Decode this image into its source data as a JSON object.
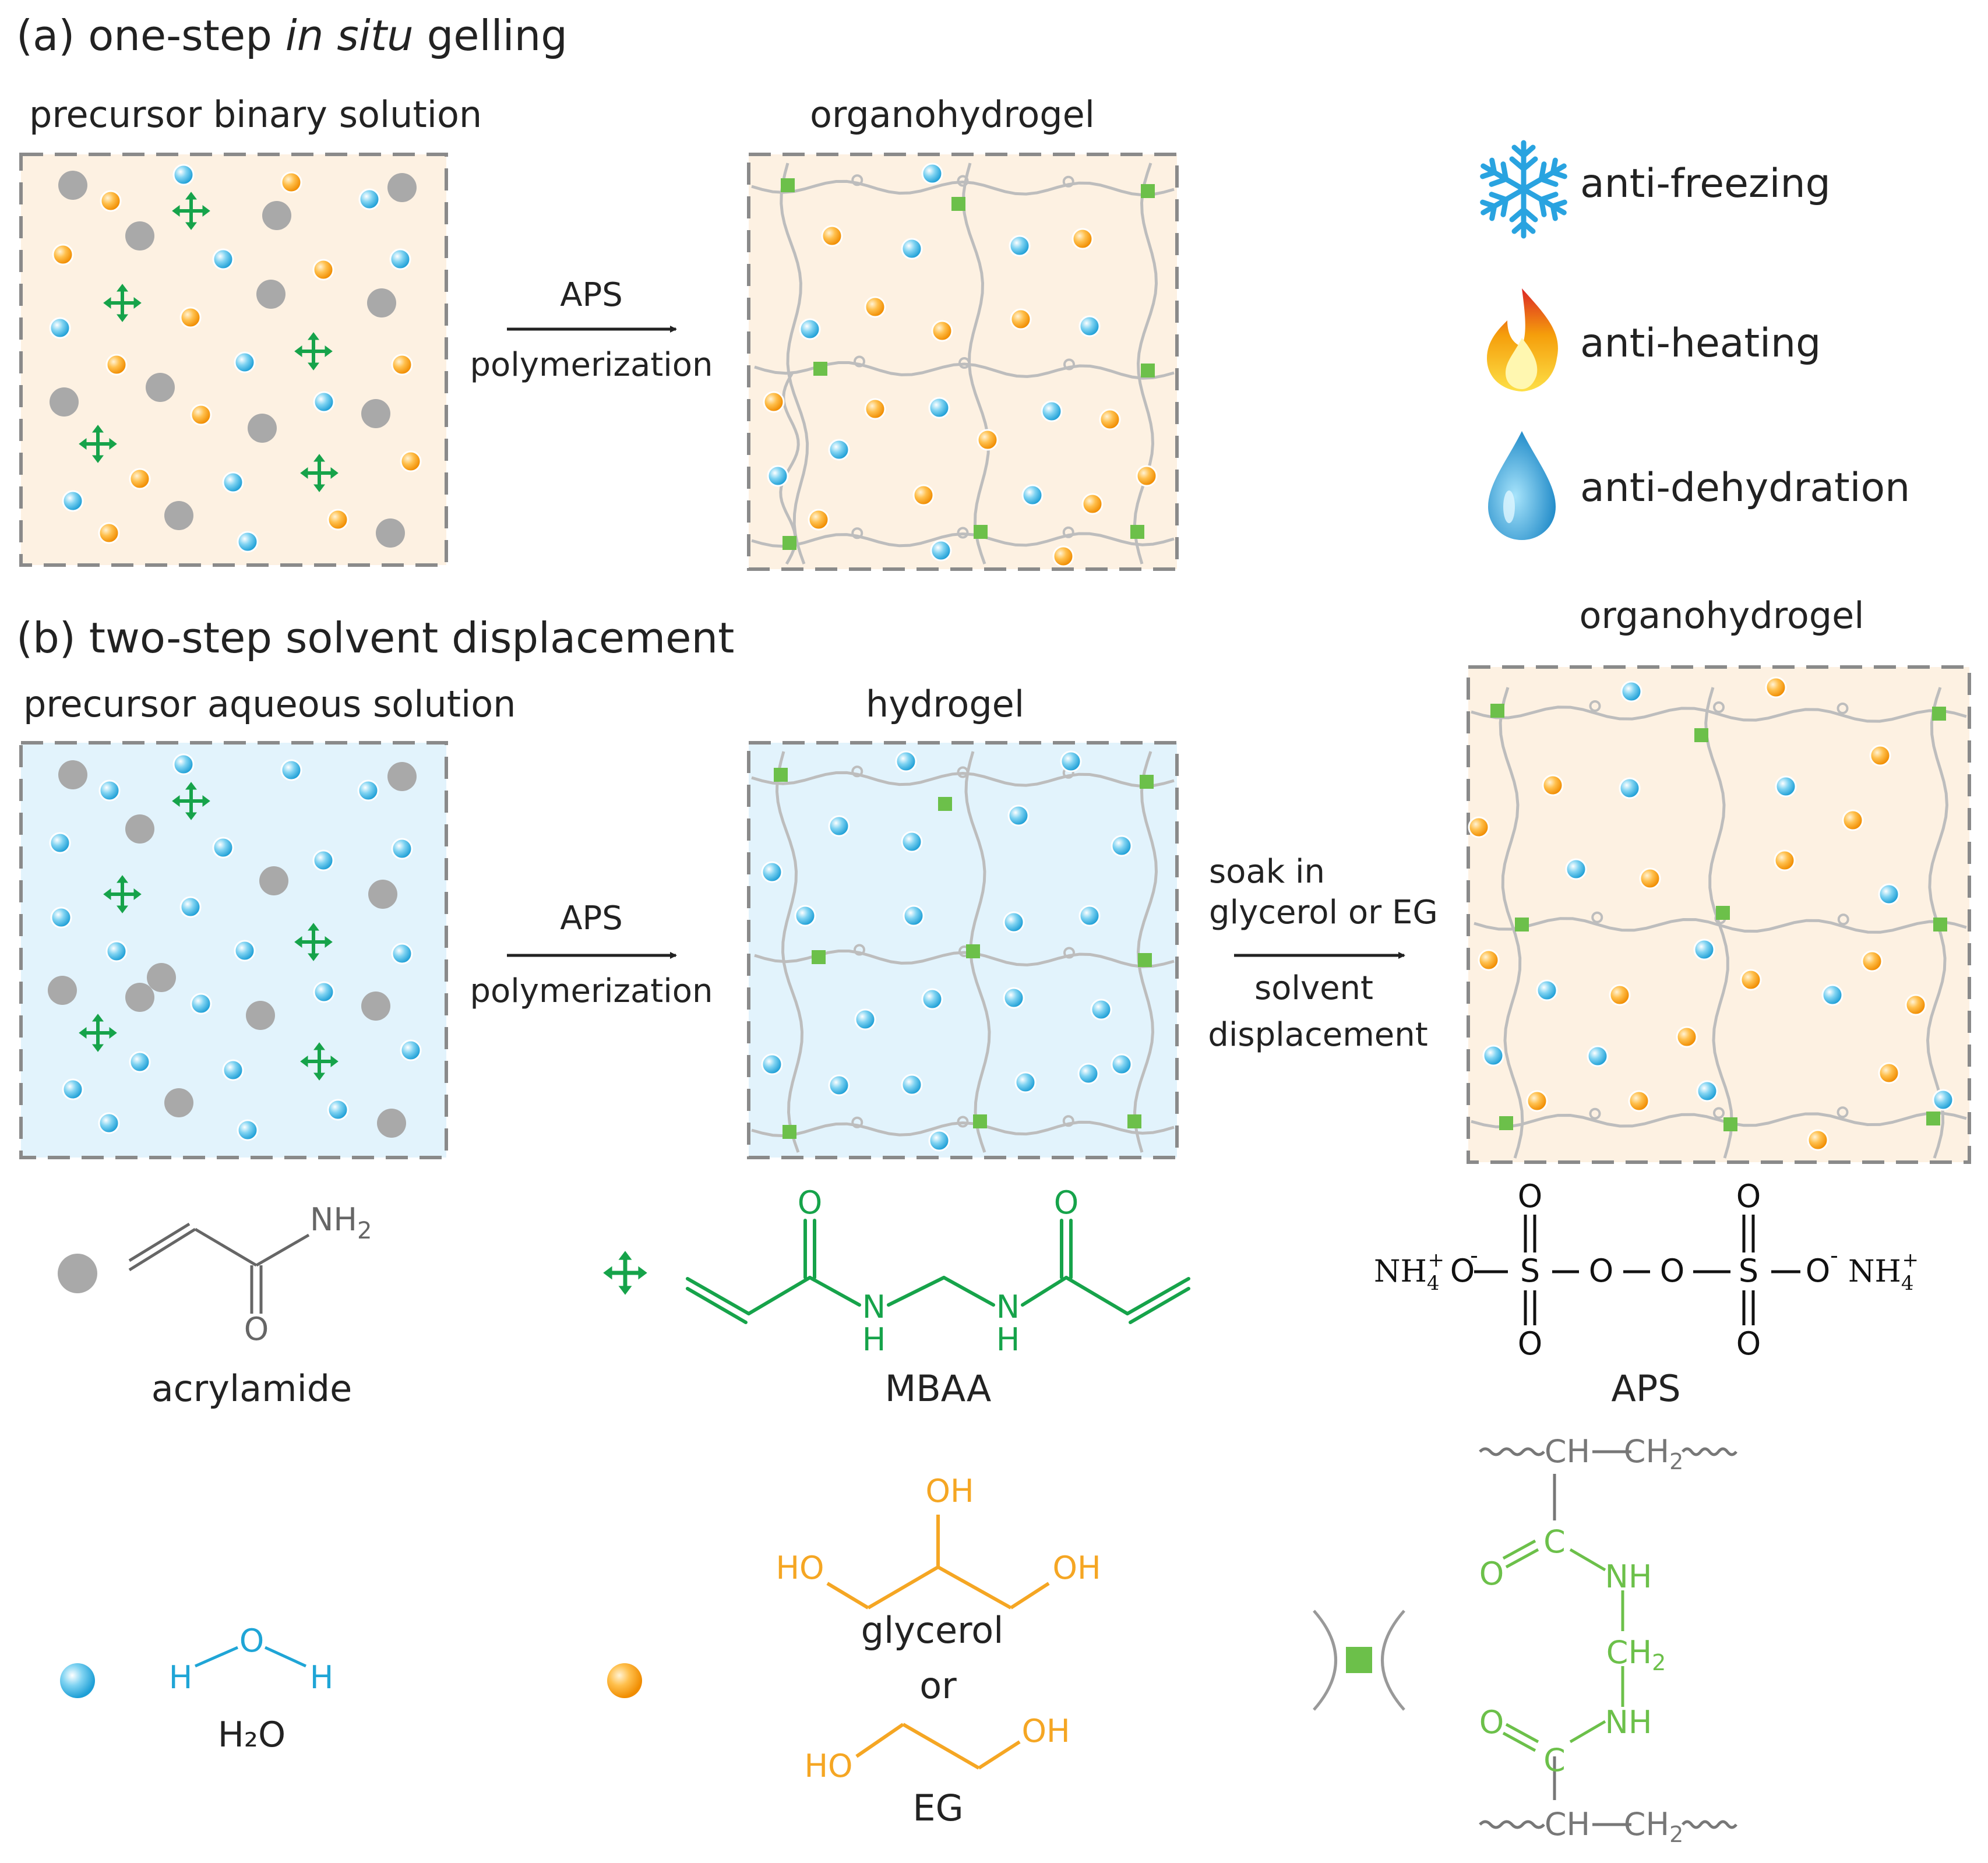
{
  "panel_a": {
    "label_prefix": "(a) one-step ",
    "label_italic": "in situ",
    "label_suffix": " gelling",
    "left_title": "precursor binary solution",
    "right_title": "organohydrogel",
    "arrow_top": "APS",
    "arrow_bottom": "polymerization"
  },
  "properties": {
    "freezing": "anti-freezing",
    "heating": "anti-heating",
    "dehydration": "anti-dehydration"
  },
  "panel_b": {
    "label": "(b) two-step solvent displacement",
    "left_title": "precursor aqueous solution",
    "middle_title": "hydrogel",
    "right_title": "organohydrogel",
    "arrow1_top": "APS",
    "arrow1_bottom": "polymerization",
    "arrow2_top1": "soak in",
    "arrow2_top2": "glycerol or EG",
    "arrow2_bottom1": "solvent",
    "arrow2_bottom2": "displacement"
  },
  "legend": {
    "acrylamide_name": "acrylamide",
    "acrylamide_nh2": "NH",
    "acrylamide_nh2_sub": "2",
    "acrylamide_o": "O",
    "mbaa_name": "MBAA",
    "mbaa_o": "O",
    "mbaa_n": "N",
    "mbaa_h": "H",
    "aps_name": "APS",
    "aps_o": "O",
    "aps_s": "S",
    "aps_nh4": "NH",
    "aps_sub4": "4",
    "aps_plus": "+",
    "aps_minus": "-",
    "water_h": "H",
    "water_o": "O",
    "water_name": "H₂O",
    "glycerol_oh": "OH",
    "glycerol_ho": "HO",
    "glycerol_name": "glycerol",
    "or": "or",
    "eg_oh": "OH",
    "eg_ho": "HO",
    "eg_name": "EG",
    "crosslink_ch": "CH",
    "crosslink_ch2": "CH",
    "crosslink_sub2": "2",
    "crosslink_c": "C",
    "crosslink_o": "O",
    "crosslink_nh": "NH"
  },
  "colors": {
    "water": "#3fb8e6",
    "glycerol": "#f5a623",
    "monomer": "#a9a9a9",
    "mbaa": "#16a34a",
    "crosslink": "#6cc04a",
    "chain": "#bdbdbd",
    "box_binary": "#fdf1e2",
    "box_aqueous": "#e2f3fc",
    "box_border": "#8a8a8a"
  }
}
